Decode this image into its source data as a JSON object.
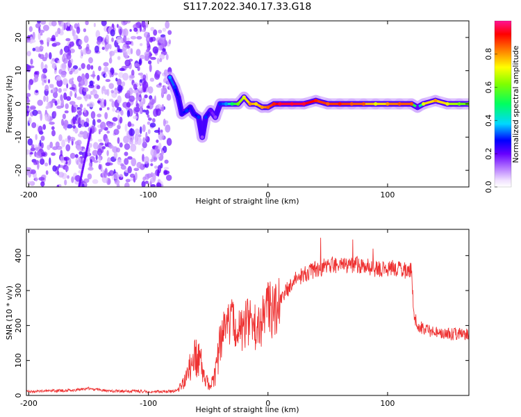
{
  "figure": {
    "title": "S117.2022.340.17.33.G18"
  },
  "chart_data": [
    {
      "type": "heatmap",
      "xlabel": "Height of straight line (km)",
      "ylabel": "Frequency (Hz)",
      "xlim": [
        -202,
        168
      ],
      "ylim": [
        -25,
        25
      ],
      "xticks": [
        -200,
        -100,
        0,
        100
      ],
      "yticks": [
        -20,
        -10,
        0,
        10,
        20
      ],
      "colorbar": {
        "label": "Normalized spectral amplitude",
        "range": [
          0,
          1
        ],
        "ticks": [
          "0.0",
          "0.2",
          "0.4",
          "0.6",
          "0.8"
        ]
      },
      "noise_region_x": [
        -202,
        -82
      ],
      "ridge": [
        {
          "x": -82,
          "y": 8,
          "v": 0.35
        },
        {
          "x": -78,
          "y": 5,
          "v": 0.3
        },
        {
          "x": -75,
          "y": 2,
          "v": 0.25
        },
        {
          "x": -72,
          "y": -3,
          "v": 0.25
        },
        {
          "x": -68,
          "y": -2,
          "v": 0.3
        },
        {
          "x": -65,
          "y": -1,
          "v": 0.25
        },
        {
          "x": -62,
          "y": -3,
          "v": 0.25
        },
        {
          "x": -58,
          "y": -4,
          "v": 0.3
        },
        {
          "x": -55,
          "y": -10,
          "v": 0.15
        },
        {
          "x": -52,
          "y": -4,
          "v": 0.3
        },
        {
          "x": -48,
          "y": -2,
          "v": 0.2
        },
        {
          "x": -44,
          "y": -4,
          "v": 0.15
        },
        {
          "x": -40,
          "y": 0,
          "v": 0.3
        },
        {
          "x": -35,
          "y": 0,
          "v": 0.35
        },
        {
          "x": -30,
          "y": 0,
          "v": 0.5
        },
        {
          "x": -25,
          "y": 0,
          "v": 0.6
        },
        {
          "x": -20,
          "y": 2,
          "v": 0.7
        },
        {
          "x": -15,
          "y": 0,
          "v": 0.8
        },
        {
          "x": -10,
          "y": 0,
          "v": 0.75
        },
        {
          "x": -5,
          "y": -1,
          "v": 0.8
        },
        {
          "x": 0,
          "y": -1,
          "v": 0.85
        },
        {
          "x": 5,
          "y": 0,
          "v": 0.9
        },
        {
          "x": 10,
          "y": 0,
          "v": 0.95
        },
        {
          "x": 20,
          "y": 0,
          "v": 0.95
        },
        {
          "x": 30,
          "y": 0,
          "v": 0.95
        },
        {
          "x": 40,
          "y": 1,
          "v": 0.9
        },
        {
          "x": 50,
          "y": 0,
          "v": 0.85
        },
        {
          "x": 60,
          "y": 0,
          "v": 0.9
        },
        {
          "x": 70,
          "y": 0,
          "v": 0.85
        },
        {
          "x": 80,
          "y": 0,
          "v": 0.85
        },
        {
          "x": 90,
          "y": 0,
          "v": 0.7
        },
        {
          "x": 100,
          "y": 0,
          "v": 0.8
        },
        {
          "x": 110,
          "y": 0,
          "v": 0.85
        },
        {
          "x": 120,
          "y": 0,
          "v": 0.85
        },
        {
          "x": 125,
          "y": -1,
          "v": 0.2
        },
        {
          "x": 130,
          "y": 0,
          "v": 0.7
        },
        {
          "x": 140,
          "y": 1,
          "v": 0.8
        },
        {
          "x": 150,
          "y": 0,
          "v": 0.7
        },
        {
          "x": 160,
          "y": 0,
          "v": 0.6
        },
        {
          "x": 168,
          "y": 0,
          "v": 0.6
        }
      ]
    },
    {
      "type": "line",
      "xlabel": "Height of straight line (km)",
      "ylabel": "SNR (10 * v/v)",
      "xlim": [
        -202,
        168
      ],
      "ylim": [
        0,
        475
      ],
      "xticks": [
        -200,
        -100,
        0,
        100
      ],
      "yticks": [
        0,
        100,
        200,
        300,
        400
      ],
      "series": [
        {
          "color": "#ee3030",
          "points": [
            [
              -202,
              12
            ],
            [
              -190,
              12
            ],
            [
              -180,
              13
            ],
            [
              -170,
              14
            ],
            [
              -160,
              16
            ],
            [
              -150,
              20
            ],
            [
              -140,
              15
            ],
            [
              -130,
              13
            ],
            [
              -120,
              12
            ],
            [
              -110,
              12
            ],
            [
              -100,
              11
            ],
            [
              -90,
              11
            ],
            [
              -80,
              12
            ],
            [
              -75,
              15
            ],
            [
              -70,
              40
            ],
            [
              -65,
              80
            ],
            [
              -60,
              110
            ],
            [
              -56,
              90
            ],
            [
              -52,
              40
            ],
            [
              -48,
              30
            ],
            [
              -44,
              60
            ],
            [
              -40,
              150
            ],
            [
              -35,
              200
            ],
            [
              -30,
              230
            ],
            [
              -25,
              180
            ],
            [
              -20,
              200
            ],
            [
              -15,
              220
            ],
            [
              -10,
              190
            ],
            [
              -5,
              210
            ],
            [
              0,
              240
            ],
            [
              5,
              250
            ],
            [
              10,
              270
            ],
            [
              15,
              300
            ],
            [
              20,
              320
            ],
            [
              25,
              335
            ],
            [
              30,
              345
            ],
            [
              40,
              360
            ],
            [
              50,
              370
            ],
            [
              60,
              375
            ],
            [
              70,
              370
            ],
            [
              80,
              375
            ],
            [
              90,
              360
            ],
            [
              100,
              365
            ],
            [
              110,
              360
            ],
            [
              120,
              355
            ],
            [
              122,
              230
            ],
            [
              125,
              200
            ],
            [
              130,
              190
            ],
            [
              140,
              180
            ],
            [
              150,
              175
            ],
            [
              160,
              175
            ],
            [
              168,
              175
            ]
          ]
        }
      ]
    }
  ]
}
